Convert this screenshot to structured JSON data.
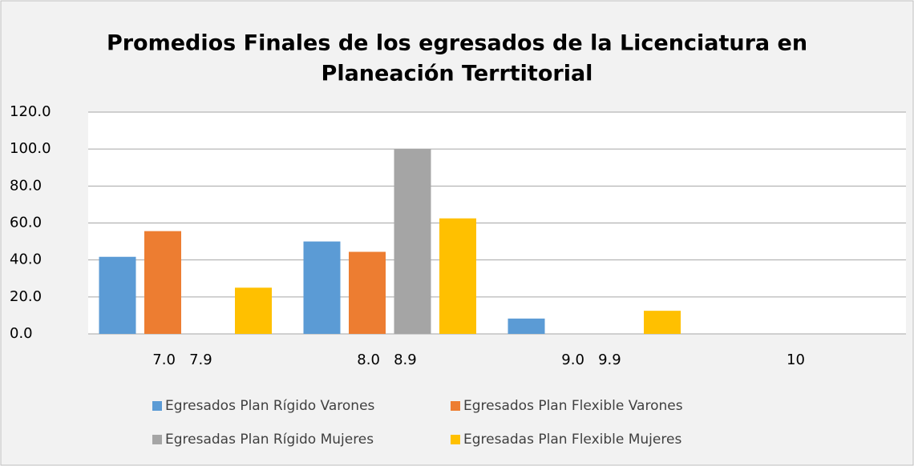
{
  "chart_data": {
    "type": "bar",
    "title": [
      "Promedios Finales de los egresados de la Licenciatura en",
      "Planeación Terrtitorial"
    ],
    "categories": [
      "7.0   7.9",
      "8.0   8.9",
      "9.0   9.9",
      "10"
    ],
    "series": [
      {
        "name": "Egresados Plan Rígido Varones",
        "color": "#5b9bd5",
        "values": [
          41.7,
          50.0,
          8.3,
          0
        ]
      },
      {
        "name": "Egresados Plan Flexible Varones",
        "color": "#ed7d31",
        "values": [
          55.6,
          44.4,
          0,
          0
        ]
      },
      {
        "name": "Egresadas Plan Rígido Mujeres",
        "color": "#a5a5a5",
        "values": [
          0,
          100.0,
          0,
          0
        ]
      },
      {
        "name": "Egresadas Plan Flexible Mujeres",
        "color": "#ffc000",
        "values": [
          25.0,
          62.5,
          12.5,
          0
        ]
      }
    ],
    "ylim": [
      0,
      120
    ],
    "yticks": [
      {
        "value": 0,
        "label": "0.0"
      },
      {
        "value": 20,
        "label": "20.0"
      },
      {
        "value": 40,
        "label": "40.0"
      },
      {
        "value": 60,
        "label": "60.0"
      },
      {
        "value": 80,
        "label": "80.0"
      },
      {
        "value": 100,
        "label": "100.0"
      },
      {
        "value": 120,
        "label": "120.0"
      }
    ],
    "grid": true
  }
}
